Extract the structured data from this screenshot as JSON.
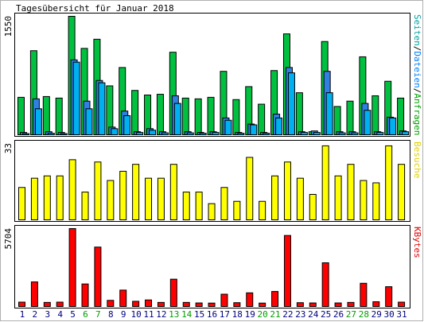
{
  "chart_data": {
    "type": "bar",
    "title": "Tagesübersicht für Januar 2018",
    "days": [
      "1",
      "2",
      "3",
      "4",
      "5",
      "6",
      "7",
      "8",
      "9",
      "10",
      "11",
      "12",
      "13",
      "14",
      "15",
      "16",
      "17",
      "18",
      "19",
      "20",
      "21",
      "22",
      "23",
      "24",
      "25",
      "26",
      "27",
      "28",
      "29",
      "30",
      "31"
    ],
    "weekend_days": [
      "6",
      "7",
      "13",
      "14",
      "20",
      "21",
      "27",
      "28"
    ],
    "day_colors": {
      "weekday": "#000080",
      "weekend": "#00a000"
    },
    "panels": [
      {
        "name": "hits",
        "ymax_label": "1550",
        "ymax": 1550,
        "side_label": {
          "parts": [
            "Seiten",
            "/",
            "Dateien",
            "/",
            "Anfragen"
          ],
          "colors": [
            "#00a0a0",
            "#000000",
            "#0080ff",
            "#000000",
            "#00a000"
          ]
        },
        "series": [
          {
            "name": "Anfragen",
            "color": "#00c040",
            "values": [
              490,
              1100,
              500,
              480,
              1550,
              1130,
              1250,
              640,
              880,
              580,
              520,
              530,
              1080,
              480,
              470,
              490,
              830,
              460,
              630,
              400,
              840,
              1320,
              550,
              40,
              1220,
              370,
              440,
              1020,
              510,
              700,
              480
            ]
          },
          {
            "name": "Dateien",
            "color": "#2f80e0",
            "values": [
              30,
              470,
              40,
              30,
              980,
              440,
              710,
              100,
              310,
              40,
              80,
              40,
              510,
              40,
              30,
              40,
              220,
              30,
              140,
              30,
              270,
              880,
              40,
              50,
              830,
              40,
              40,
              410,
              40,
              230,
              50
            ]
          },
          {
            "name": "Seiten",
            "color": "#00b0f0",
            "values": [
              15,
              340,
              20,
              15,
              950,
              340,
              680,
              80,
              250,
              30,
              60,
              25,
              410,
              25,
              20,
              30,
              190,
              20,
              130,
              20,
              220,
              810,
              30,
              30,
              550,
              25,
              25,
              320,
              30,
              220,
              40
            ]
          }
        ]
      },
      {
        "name": "besuche",
        "ymax_label": "33",
        "ymax": 33,
        "side_label": {
          "parts": [
            "Besuche"
          ],
          "colors": [
            "#e0d000"
          ]
        },
        "series": [
          {
            "name": "Besuche",
            "color": "#ffff00",
            "values": [
              14,
              18,
              19,
              19,
              26,
              12,
              25,
              17,
              21,
              24,
              18,
              18,
              24,
              12,
              12,
              7,
              14,
              8,
              27,
              8,
              19,
              25,
              18,
              11,
              32,
              19,
              24,
              17,
              16,
              32,
              24
            ]
          }
        ]
      },
      {
        "name": "kbytes",
        "ymax_label": "5704",
        "ymax": 5704,
        "side_label": {
          "parts": [
            "KBytes"
          ],
          "colors": [
            "#e00000"
          ]
        },
        "series": [
          {
            "name": "KBytes",
            "color": "#ff0000",
            "values": [
              320,
              1800,
              300,
              320,
              5704,
              1650,
              4350,
              450,
              1200,
              380,
              480,
              300,
              2000,
              300,
              260,
              250,
              900,
              280,
              1000,
              250,
              1100,
              5200,
              280,
              260,
              3200,
              260,
              300,
              1700,
              350,
              1450,
              320
            ]
          }
        ]
      }
    ]
  }
}
